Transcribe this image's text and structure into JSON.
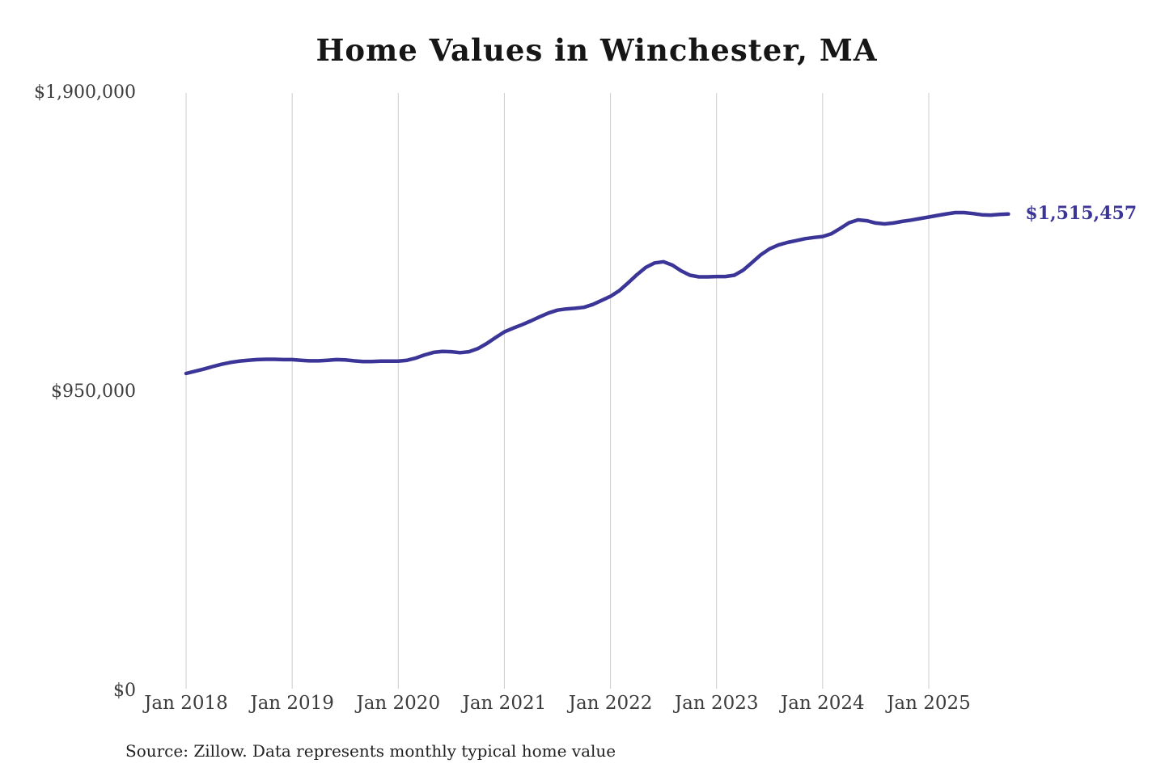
{
  "page": {
    "background": "#ffffff"
  },
  "chart_data": {
    "type": "line",
    "title": "Home Values in Winchester, MA",
    "source": "Source: Zillow. Data represents monthly typical home value",
    "end_label": "$1,515,457",
    "end_value": 1515457,
    "x_labels": [
      "Jan 2018",
      "Jan 2019",
      "Jan 2020",
      "Jan 2021",
      "Jan 2022",
      "Jan 2023",
      "Jan 2024",
      "Jan 2025"
    ],
    "y_ticks": [
      {
        "label": "$1,900,000",
        "value": 1900000
      },
      {
        "label": "$950,000",
        "value": 950000
      },
      {
        "label": "$0",
        "value": 0
      }
    ],
    "ylim": [
      0,
      1900000
    ],
    "grid": "vertical-only",
    "legend": "none",
    "series": [
      {
        "name": "Monthly typical home value",
        "start": "Jan 2018",
        "end": "Oct 2025",
        "frequency": "monthly",
        "values": [
          1009000,
          1016000,
          1023000,
          1031000,
          1038000,
          1044000,
          1048000,
          1051000,
          1053000,
          1054000,
          1054000,
          1053000,
          1053000,
          1051000,
          1049000,
          1049000,
          1051000,
          1053000,
          1052000,
          1049000,
          1047000,
          1047000,
          1048000,
          1048000,
          1048000,
          1051000,
          1058000,
          1068000,
          1076000,
          1079000,
          1078000,
          1075000,
          1078000,
          1088000,
          1104000,
          1123000,
          1141000,
          1153000,
          1164000,
          1176000,
          1189000,
          1201000,
          1210000,
          1214000,
          1216000,
          1219000,
          1228000,
          1241000,
          1254000,
          1272000,
          1297000,
          1323000,
          1346000,
          1360000,
          1364000,
          1353000,
          1335000,
          1321000,
          1316000,
          1316000,
          1317000,
          1317000,
          1321000,
          1337000,
          1361000,
          1386000,
          1405000,
          1417000,
          1425000,
          1431000,
          1437000,
          1441000,
          1444000,
          1453000,
          1470000,
          1488000,
          1497000,
          1494000,
          1487000,
          1484000,
          1487000,
          1492000,
          1496000,
          1501000,
          1506000,
          1511000,
          1516000,
          1520000,
          1520000,
          1517000,
          1513000,
          1512000,
          1514000,
          1515457
        ]
      }
    ],
    "colors": {
      "line": "#3b3597",
      "grid": "#cccccc",
      "axis_text": "#3c3c3c",
      "title_text": "#161616",
      "end_label_text": "#3b3597"
    }
  }
}
